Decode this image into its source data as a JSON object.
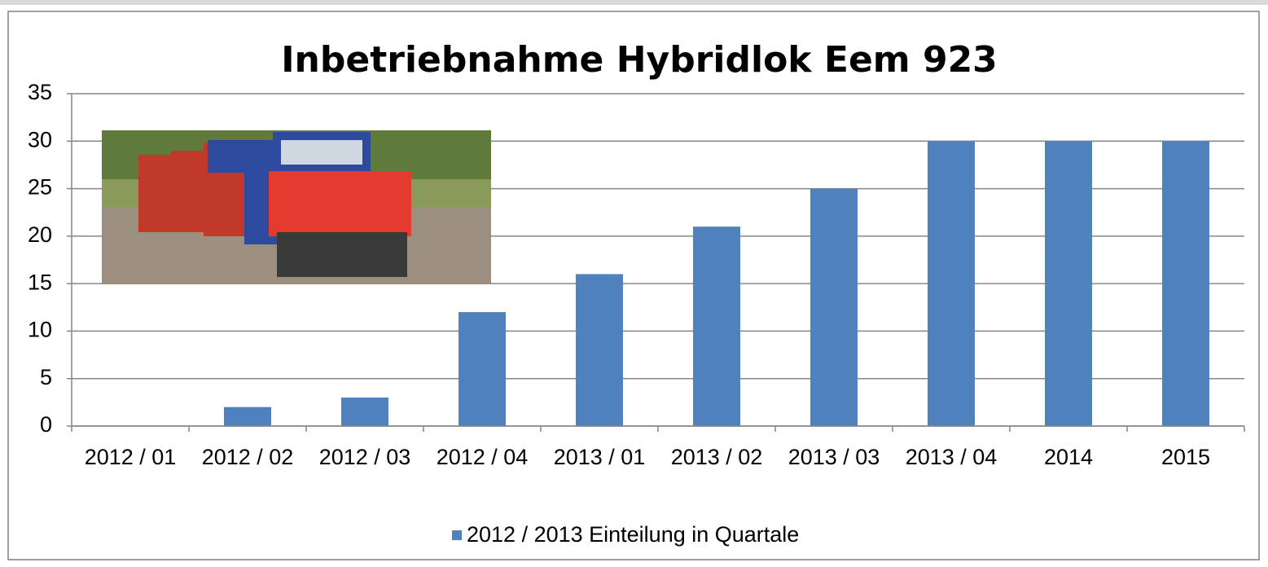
{
  "chart_data": {
    "type": "bar",
    "title": "Inbetriebnahme Hybridlok Eem 923",
    "categories": [
      "2012 / 01",
      "2012 / 02",
      "2012 / 03",
      "2012 / 04",
      "2013 / 01",
      "2013 / 02",
      "2013 / 03",
      "2013 / 04",
      "2014",
      "2015"
    ],
    "series": [
      {
        "name": "2012 / 2013 Einteilung in Quartale",
        "color": "#4f81bd",
        "values": [
          0,
          2,
          3,
          12,
          16,
          21,
          25,
          30,
          30,
          30
        ]
      }
    ],
    "ylim": [
      0,
      35
    ],
    "yticks": [
      0,
      5,
      10,
      15,
      20,
      25,
      30,
      35
    ],
    "grid": true,
    "legend": "bottom"
  }
}
